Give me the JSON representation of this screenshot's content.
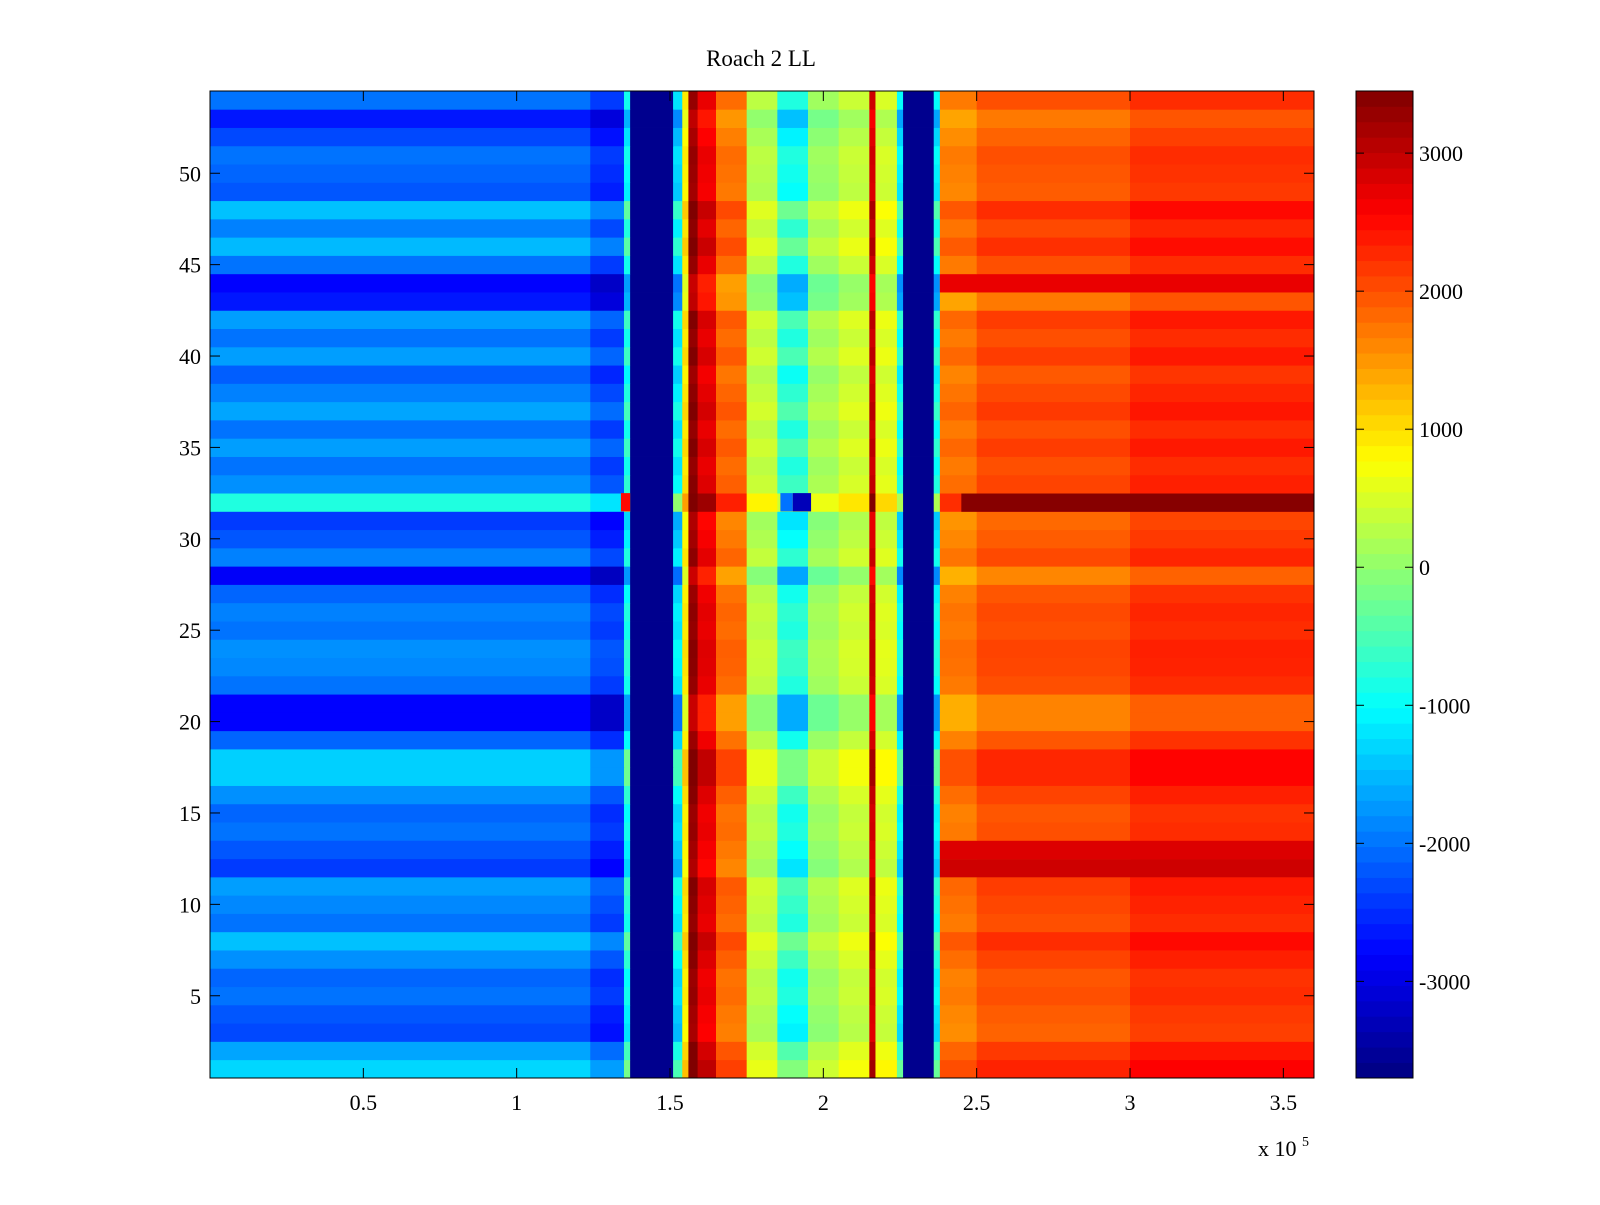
{
  "chart_data": {
    "type": "heatmap",
    "title": "Roach 2 LL",
    "xlabel": "",
    "ylabel": "",
    "x_exponent_label": {
      "prefix": "x 10",
      "exponent": "5"
    },
    "xlim": [
      0,
      360000
    ],
    "ylim": [
      0.5,
      54.5
    ],
    "x_ticks": [
      {
        "value": 50000,
        "label": "0.5"
      },
      {
        "value": 100000,
        "label": "1"
      },
      {
        "value": 150000,
        "label": "1.5"
      },
      {
        "value": 200000,
        "label": "2"
      },
      {
        "value": 250000,
        "label": "2.5"
      },
      {
        "value": 300000,
        "label": "3"
      },
      {
        "value": 350000,
        "label": "3.5"
      }
    ],
    "y_ticks": [
      {
        "value": 5,
        "label": "5"
      },
      {
        "value": 10,
        "label": "10"
      },
      {
        "value": 15,
        "label": "15"
      },
      {
        "value": 20,
        "label": "20"
      },
      {
        "value": 25,
        "label": "25"
      },
      {
        "value": 30,
        "label": "30"
      },
      {
        "value": 35,
        "label": "35"
      },
      {
        "value": 40,
        "label": "40"
      },
      {
        "value": 45,
        "label": "45"
      },
      {
        "value": 50,
        "label": "50"
      }
    ],
    "colorbar": {
      "colormap": "jet",
      "range": [
        -3700,
        3450
      ],
      "ticks": [
        {
          "value": -3000,
          "label": "-3000"
        },
        {
          "value": -2000,
          "label": "-2000"
        },
        {
          "value": -1000,
          "label": "-1000"
        },
        {
          "value": 0,
          "label": "0"
        },
        {
          "value": 1000,
          "label": "1000"
        },
        {
          "value": 2000,
          "label": "2000"
        },
        {
          "value": 3000,
          "label": "3000"
        }
      ]
    },
    "rows": 54,
    "x_segments": [
      {
        "x": [
          0,
          124000
        ],
        "value": -2000
      },
      {
        "x": [
          124000,
          135000
        ],
        "value": -2400
      },
      {
        "x": [
          135000,
          137000
        ],
        "value": -900
      },
      {
        "x": [
          137000,
          151000
        ],
        "value": -3600
      },
      {
        "x": [
          151000,
          154000
        ],
        "value": -1200
      },
      {
        "x": [
          154000,
          156000
        ],
        "value": 900
      },
      {
        "x": [
          156000,
          159000
        ],
        "value": 3300
      },
      {
        "x": [
          159000,
          165000
        ],
        "value": 2700
      },
      {
        "x": [
          165000,
          175000
        ],
        "value": 1800
      },
      {
        "x": [
          175000,
          185000
        ],
        "value": 300
      },
      {
        "x": [
          185000,
          195000
        ],
        "value": -800
      },
      {
        "x": [
          195000,
          205000
        ],
        "value": 100
      },
      {
        "x": [
          205000,
          215000
        ],
        "value": 400
      },
      {
        "x": [
          215000,
          217000
        ],
        "value": 2900
      },
      {
        "x": [
          217000,
          224000
        ],
        "value": 500
      },
      {
        "x": [
          224000,
          226000
        ],
        "value": -1000
      },
      {
        "x": [
          226000,
          236000
        ],
        "value": -3600
      },
      {
        "x": [
          236000,
          238000
        ],
        "value": -1000
      },
      {
        "x": [
          238000,
          250000
        ],
        "value": 1700
      },
      {
        "x": [
          250000,
          300000
        ],
        "value": 2000
      },
      {
        "x": [
          300000,
          360000
        ],
        "value": 2250
      }
    ],
    "row_offsets": [
      {
        "row": 1,
        "value": 700
      },
      {
        "row": 2,
        "value": 350
      },
      {
        "row": 3,
        "value": -300
      },
      {
        "row": 4,
        "value": -200
      },
      {
        "row": 5,
        "value": 0
      },
      {
        "row": 6,
        "value": -100
      },
      {
        "row": 7,
        "value": 200
      },
      {
        "row": 8,
        "value": 550
      },
      {
        "row": 9,
        "value": 0
      },
      {
        "row": 10,
        "value": 150
      },
      {
        "row": 11,
        "value": 300
      },
      {
        "row": 12,
        "value": -400
      },
      {
        "row": 13,
        "value": -200
      },
      {
        "row": 14,
        "value": 0
      },
      {
        "row": 15,
        "value": -100
      },
      {
        "row": 16,
        "value": 200
      },
      {
        "row": 17,
        "value": 650
      },
      {
        "row": 18,
        "value": 650
      },
      {
        "row": 19,
        "value": -100
      },
      {
        "row": 20,
        "value": -800
      },
      {
        "row": 21,
        "value": -800
      },
      {
        "row": 22,
        "value": 0
      },
      {
        "row": 23,
        "value": 150
      },
      {
        "row": 24,
        "value": 200
      },
      {
        "row": 25,
        "value": 0
      },
      {
        "row": 26,
        "value": 100
      },
      {
        "row": 27,
        "value": -100
      },
      {
        "row": 28,
        "value": -850
      },
      {
        "row": 29,
        "value": 100
      },
      {
        "row": 30,
        "value": -200
      },
      {
        "row": 31,
        "value": -400
      },
      {
        "row": 32,
        "value": 1200
      },
      {
        "row": 33,
        "value": 200
      },
      {
        "row": 34,
        "value": 0
      },
      {
        "row": 35,
        "value": 300
      },
      {
        "row": 36,
        "value": 0
      },
      {
        "row": 37,
        "value": 350
      },
      {
        "row": 38,
        "value": 100
      },
      {
        "row": 39,
        "value": -150
      },
      {
        "row": 40,
        "value": 300
      },
      {
        "row": 41,
        "value": 0
      },
      {
        "row": 42,
        "value": 300
      },
      {
        "row": 43,
        "value": -650
      },
      {
        "row": 44,
        "value": -800
      },
      {
        "row": 45,
        "value": 0
      },
      {
        "row": 46,
        "value": 500
      },
      {
        "row": 47,
        "value": 100
      },
      {
        "row": 48,
        "value": 550
      },
      {
        "row": 49,
        "value": -200
      },
      {
        "row": 50,
        "value": -100
      },
      {
        "row": 51,
        "value": 0
      },
      {
        "row": 52,
        "value": -300
      },
      {
        "row": 53,
        "value": -650
      },
      {
        "row": 54,
        "value": 0
      }
    ],
    "hot_rows": [
      {
        "row": 32,
        "x": [
          245000,
          360000
        ],
        "value": 3400
      },
      {
        "row": 12,
        "x": [
          238000,
          360000
        ],
        "value": 2900
      },
      {
        "row": 13,
        "x": [
          238000,
          360000
        ],
        "value": 2800
      },
      {
        "row": 44,
        "x": [
          238000,
          360000
        ],
        "value": 2700
      }
    ],
    "row_32_features": [
      {
        "x": [
          190000,
          196000
        ],
        "value": -3300
      },
      {
        "x": [
          186000,
          190000
        ],
        "value": -2000
      },
      {
        "x": [
          134000,
          137000
        ],
        "value": 2500
      }
    ]
  }
}
